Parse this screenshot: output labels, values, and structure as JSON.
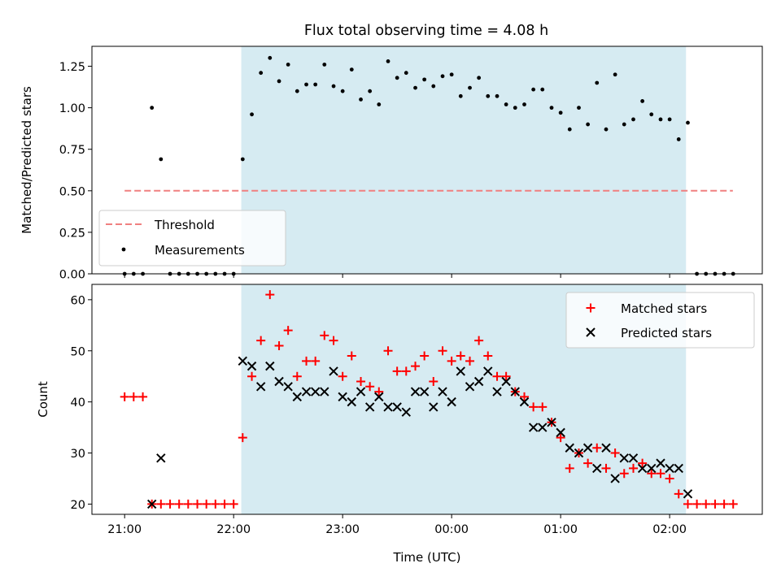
{
  "title": "Flux total observing time = 4.08 h",
  "chart_data": [
    {
      "type": "scatter",
      "ylabel": "Matched/Predicted stars",
      "xlim": [
        -0.3,
        5.85
      ],
      "ylim": [
        0,
        1.37
      ],
      "yticks": [
        0.0,
        0.25,
        0.5,
        0.75,
        1.0,
        1.25
      ],
      "ytick_labels": [
        "0.00",
        "0.25",
        "0.50",
        "0.75",
        "1.00",
        "1.25"
      ],
      "observing_window": [
        1.07,
        5.15
      ],
      "threshold": {
        "name": "Threshold",
        "value": 0.5,
        "x_range": [
          0,
          5.58
        ],
        "color": "#f08080"
      },
      "legend": {
        "position": "lower-left"
      },
      "series": [
        {
          "name": "Measurements",
          "color": "#000000",
          "x": [
            0.0,
            0.083,
            0.167,
            0.25,
            0.333,
            0.417,
            0.5,
            0.583,
            0.667,
            0.75,
            0.833,
            0.917,
            1.0,
            1.083,
            1.167,
            1.25,
            1.333,
            1.417,
            1.5,
            1.583,
            1.667,
            1.75,
            1.833,
            1.917,
            2.0,
            2.083,
            2.167,
            2.25,
            2.333,
            2.417,
            2.5,
            2.583,
            2.667,
            2.75,
            2.833,
            2.917,
            3.0,
            3.083,
            3.167,
            3.25,
            3.333,
            3.417,
            3.5,
            3.583,
            3.667,
            3.75,
            3.833,
            3.917,
            4.0,
            4.083,
            4.167,
            4.25,
            4.333,
            4.417,
            4.5,
            4.583,
            4.667,
            4.75,
            4.833,
            4.917,
            5.0,
            5.083,
            5.167,
            5.25,
            5.333,
            5.417,
            5.5,
            5.583
          ],
          "y": [
            0.0,
            0.0,
            0.0,
            1.0,
            0.69,
            0.0,
            0.0,
            0.0,
            0.0,
            0.0,
            0.0,
            0.0,
            0.0,
            0.69,
            0.96,
            1.21,
            1.3,
            1.16,
            1.26,
            1.1,
            1.14,
            1.14,
            1.26,
            1.13,
            1.1,
            1.23,
            1.05,
            1.1,
            1.02,
            1.28,
            1.18,
            1.21,
            1.12,
            1.17,
            1.13,
            1.19,
            1.2,
            1.07,
            1.12,
            1.18,
            1.07,
            1.07,
            1.02,
            1.0,
            1.02,
            1.11,
            1.11,
            1.0,
            0.97,
            0.87,
            1.0,
            0.9,
            1.15,
            0.87,
            1.2,
            0.9,
            0.93,
            1.04,
            0.96,
            0.93,
            0.93,
            0.81,
            0.91,
            0.0,
            0.0,
            0.0,
            0.0,
            0.0
          ]
        }
      ]
    },
    {
      "type": "scatter",
      "xlabel": "Time (UTC)",
      "ylabel": "Count",
      "xlim": [
        -0.3,
        5.85
      ],
      "ylim": [
        18,
        63
      ],
      "yticks": [
        20,
        30,
        40,
        50,
        60
      ],
      "ytick_labels": [
        "20",
        "30",
        "40",
        "50",
        "60"
      ],
      "xticks": [
        0,
        1,
        2,
        3,
        4,
        5
      ],
      "xtick_labels": [
        "21:00",
        "22:00",
        "23:00",
        "00:00",
        "01:00",
        "02:00"
      ],
      "observing_window": [
        1.07,
        5.15
      ],
      "legend": {
        "position": "top-right"
      },
      "series": [
        {
          "name": "Matched stars",
          "marker": "plus",
          "color": "#ff0000",
          "x": [
            0.0,
            0.083,
            0.167,
            0.25,
            0.333,
            0.417,
            0.5,
            0.583,
            0.667,
            0.75,
            0.833,
            0.917,
            1.0,
            1.083,
            1.167,
            1.25,
            1.333,
            1.417,
            1.5,
            1.583,
            1.667,
            1.75,
            1.833,
            1.917,
            2.0,
            2.083,
            2.167,
            2.25,
            2.333,
            2.417,
            2.5,
            2.583,
            2.667,
            2.75,
            2.833,
            2.917,
            3.0,
            3.083,
            3.167,
            3.25,
            3.333,
            3.417,
            3.5,
            3.583,
            3.667,
            3.75,
            3.833,
            3.917,
            4.0,
            4.083,
            4.167,
            4.25,
            4.333,
            4.417,
            4.5,
            4.583,
            4.667,
            4.75,
            4.833,
            4.917,
            5.0,
            5.083,
            5.167,
            5.25,
            5.333,
            5.417,
            5.5,
            5.583
          ],
          "y": [
            41,
            41,
            41,
            20,
            20,
            20,
            20,
            20,
            20,
            20,
            20,
            20,
            20,
            33,
            45,
            52,
            61,
            51,
            54,
            45,
            48,
            48,
            53,
            52,
            45,
            49,
            44,
            43,
            42,
            50,
            46,
            46,
            47,
            49,
            44,
            50,
            48,
            49,
            48,
            52,
            49,
            45,
            45,
            42,
            41,
            39,
            39,
            36,
            33,
            27,
            30,
            28,
            31,
            27,
            30,
            26,
            27,
            28,
            26,
            26,
            25,
            22,
            20,
            20,
            20,
            20,
            20,
            20
          ]
        },
        {
          "name": "Predicted stars",
          "marker": "x",
          "color": "#000000",
          "x": [
            0.25,
            0.333,
            1.083,
            1.167,
            1.25,
            1.333,
            1.417,
            1.5,
            1.583,
            1.667,
            1.75,
            1.833,
            1.917,
            2.0,
            2.083,
            2.167,
            2.25,
            2.333,
            2.417,
            2.5,
            2.583,
            2.667,
            2.75,
            2.833,
            2.917,
            3.0,
            3.083,
            3.167,
            3.25,
            3.333,
            3.417,
            3.5,
            3.583,
            3.667,
            3.75,
            3.833,
            3.917,
            4.0,
            4.083,
            4.167,
            4.25,
            4.333,
            4.417,
            4.5,
            4.583,
            4.667,
            4.75,
            4.833,
            4.917,
            5.0,
            5.083,
            5.167
          ],
          "y": [
            20,
            29,
            48,
            47,
            43,
            47,
            44,
            43,
            41,
            42,
            42,
            42,
            46,
            41,
            40,
            42,
            39,
            41,
            39,
            39,
            38,
            42,
            42,
            39,
            42,
            40,
            46,
            43,
            44,
            46,
            42,
            44,
            42,
            40,
            35,
            35,
            36,
            34,
            31,
            30,
            31,
            27,
            31,
            25,
            29,
            29,
            27,
            27,
            28,
            27,
            27,
            22
          ]
        }
      ]
    }
  ]
}
